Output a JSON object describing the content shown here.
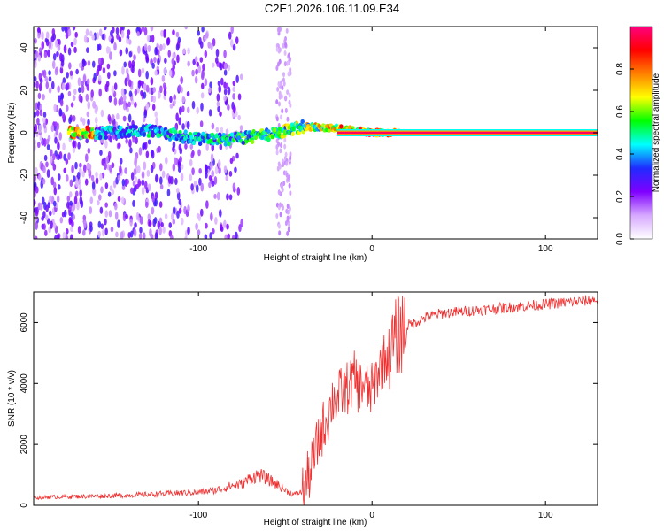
{
  "figure_title": "C2E1.2026.106.11.09.E34",
  "chart_data": [
    {
      "type": "heatmap",
      "xlabel": "Height of straight line (km)",
      "ylabel": "Frequency (Hz)",
      "xlim": [
        -195,
        130
      ],
      "ylim": [
        -50,
        50
      ],
      "xticks": [
        -100,
        0,
        100
      ],
      "xtick_labels": [
        "-100",
        "0",
        "100"
      ],
      "yticks": [
        -40,
        -20,
        0,
        20,
        40
      ],
      "ytick_labels": [
        "-40",
        "-20",
        "0",
        "20",
        "40"
      ],
      "colorbar": {
        "label": "Normalized spectral amplitude",
        "range": [
          0,
          1
        ],
        "ticks": [
          0.0,
          0.2,
          0.4,
          0.6,
          0.8
        ],
        "tick_labels": [
          "0.0",
          "0.2",
          "0.4",
          "0.6",
          "0.8"
        ],
        "colors": [
          "#ffffff",
          "#d6a8ff",
          "#7f00ff",
          "#1f2bff",
          "#00ffff",
          "#00ff00",
          "#ffff00",
          "#ff8000",
          "#ff0000",
          "#ff007f"
        ]
      },
      "ridge": [
        {
          "x": -160,
          "freq": 0,
          "amp": 0.45
        },
        {
          "x": -130,
          "freq": 1,
          "amp": 0.5
        },
        {
          "x": -100,
          "freq": -3,
          "amp": 0.5
        },
        {
          "x": -80,
          "freq": -3,
          "amp": 0.55
        },
        {
          "x": -60,
          "freq": -1,
          "amp": 0.6
        },
        {
          "x": -40,
          "freq": 3,
          "amp": 0.7
        },
        {
          "x": -20,
          "freq": 2,
          "amp": 0.8
        },
        {
          "x": 0,
          "freq": 0,
          "amp": 0.95
        },
        {
          "x": 130,
          "freq": 0,
          "amp": 0.95
        }
      ],
      "noise_region_x": [
        -195,
        -75
      ]
    },
    {
      "type": "line",
      "color": "#f03030",
      "xlabel": "Height of straight line (km)",
      "ylabel": "SNR (10 * v/v)",
      "xlim": [
        -195,
        130
      ],
      "ylim": [
        0,
        7000
      ],
      "xticks": [
        -100,
        0,
        100
      ],
      "xtick_labels": [
        "-100",
        "0",
        "100"
      ],
      "yticks": [
        0,
        2000,
        4000,
        6000
      ],
      "ytick_labels": [
        "0",
        "2000",
        "4000",
        "6000"
      ],
      "series": [
        {
          "name": "SNR",
          "x": [
            -195,
            -180,
            -160,
            -140,
            -120,
            -100,
            -90,
            -80,
            -75,
            -70,
            -65,
            -60,
            -55,
            -50,
            -45,
            -40,
            -35,
            -30,
            -25,
            -22,
            -20,
            -18,
            -15,
            -12,
            -10,
            -8,
            -5,
            -2,
            0,
            3,
            6,
            10,
            15,
            20,
            25,
            30,
            40,
            50,
            60,
            70,
            80,
            90,
            100,
            110,
            120,
            130
          ],
          "y": [
            250,
            280,
            300,
            330,
            380,
            430,
            500,
            650,
            700,
            900,
            1000,
            850,
            700,
            500,
            350,
            450,
            1200,
            2300,
            3000,
            3600,
            3400,
            3700,
            3800,
            4000,
            4200,
            3900,
            4000,
            3700,
            3800,
            4300,
            4700,
            5000,
            5600,
            5900,
            6000,
            6150,
            6300,
            6350,
            6400,
            6450,
            6500,
            6550,
            6600,
            6650,
            6700,
            6750
          ]
        }
      ]
    }
  ]
}
